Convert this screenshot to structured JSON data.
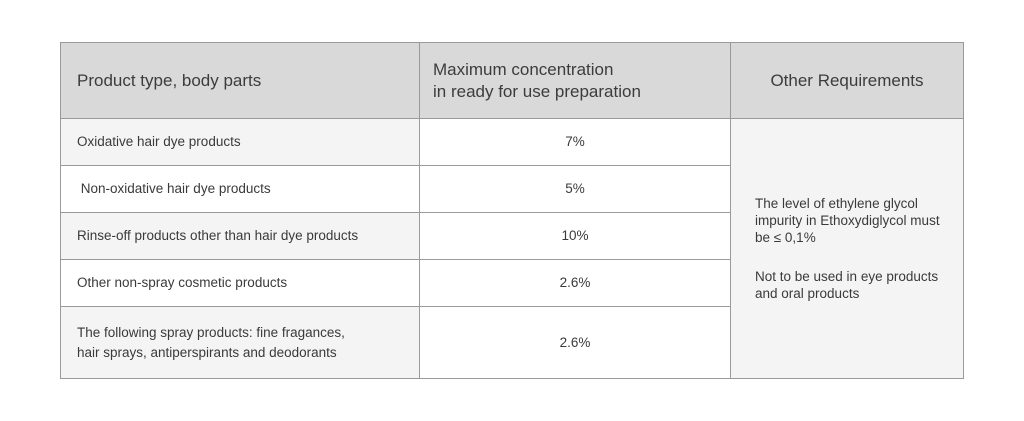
{
  "headers": {
    "product_type": "Product type, body parts",
    "max_concentration": "Maximum concentration\nin ready for use preparation",
    "other_requirements": "Other Requirements"
  },
  "rows": [
    {
      "product": "Oxidative hair dye products",
      "concentration": "7%"
    },
    {
      "product": " Non-oxidative hair dye products",
      "concentration": "5%"
    },
    {
      "product": "Rinse-off products other than hair dye products",
      "concentration": "10%"
    },
    {
      "product": "Other non-spray cosmetic products",
      "concentration": "2.6%"
    },
    {
      "product": "The following spray products: fine fragances,\nhair sprays, antiperspirants and deodorants",
      "concentration": "2.6%"
    }
  ],
  "requirements": [
    "The level of ethylene glycol impurity in Ethoxydiglycol must be ≤ 0,1%",
    "Not to be used in eye products and oral products"
  ]
}
